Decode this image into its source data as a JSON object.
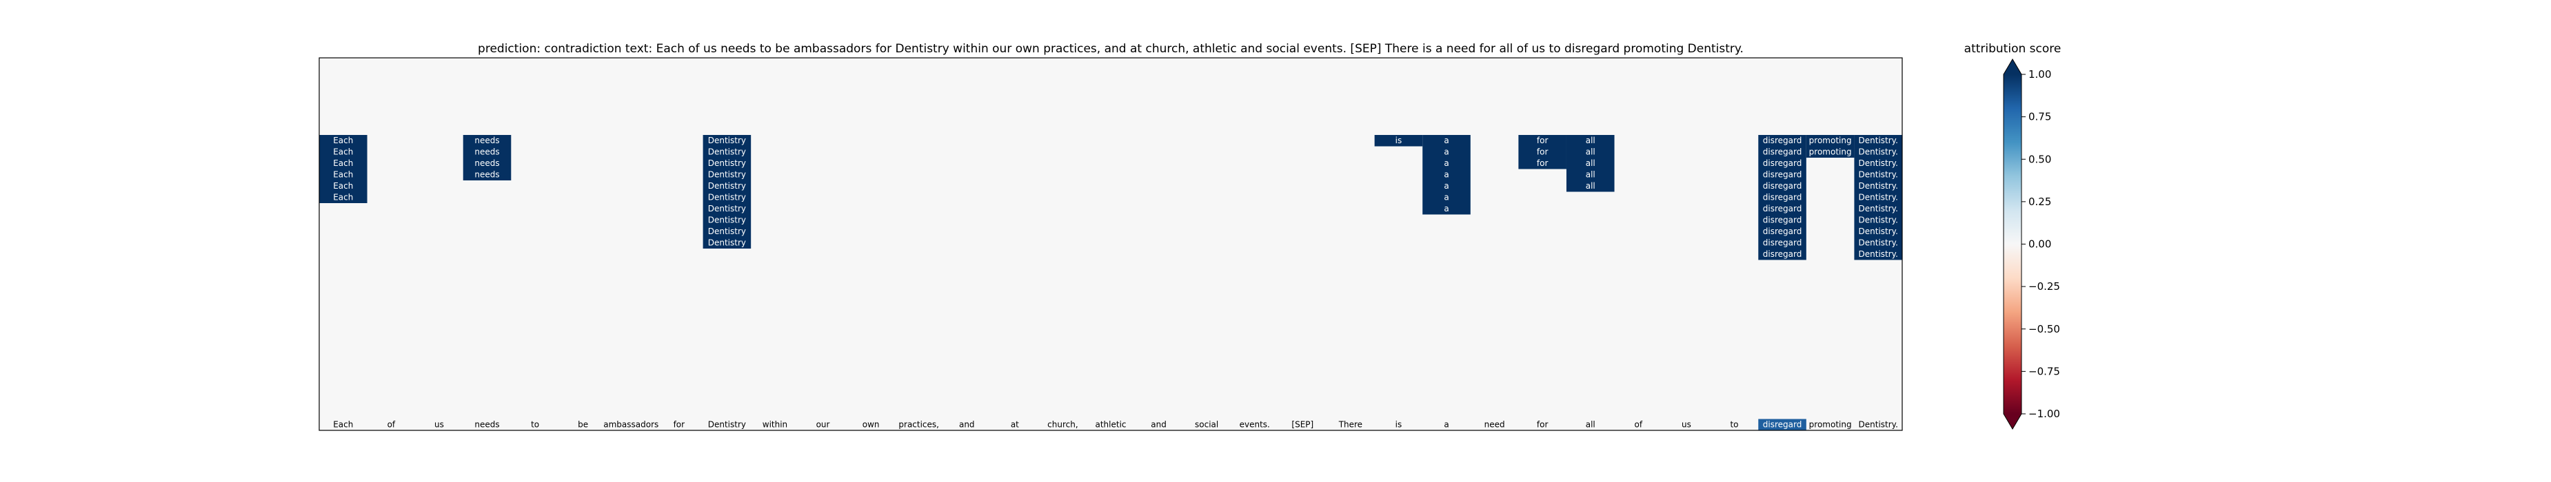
{
  "chart_data": {
    "type": "heatmap",
    "title": "prediction:  contradiction     text:  Each of us needs to be ambassadors for Dentistry within our own practices, and at church, athletic and social events. [SEP] There is a need for all of us to disregard promoting Dentistry.",
    "tokens": [
      "Each",
      "of",
      "us",
      "needs",
      "to",
      "be",
      "ambassadors",
      "for",
      "Dentistry",
      "within",
      "our",
      "own",
      "practices,",
      "and",
      "at",
      "church,",
      "athletic",
      "and",
      "social",
      "events.",
      "[SEP]",
      "There",
      "is",
      "a",
      "need",
      "for",
      "all",
      "of",
      "us",
      "to",
      "disregard",
      "promoting",
      "Dentistry."
    ],
    "n_rows": 33,
    "cells": [
      {
        "col": 0,
        "rows": [
          7,
          8,
          9,
          10,
          11,
          12
        ],
        "value": 0.92
      },
      {
        "col": 3,
        "rows": [
          7,
          8,
          9,
          10
        ],
        "value": 0.92
      },
      {
        "col": 8,
        "rows": [
          7,
          8,
          9,
          10,
          11,
          12,
          13,
          14,
          15,
          16
        ],
        "value": 0.92
      },
      {
        "col": 22,
        "rows": [
          7
        ],
        "value": 0.92
      },
      {
        "col": 23,
        "rows": [
          7,
          8,
          9,
          10,
          11,
          12,
          13
        ],
        "value": 0.92
      },
      {
        "col": 25,
        "rows": [
          7,
          8,
          9
        ],
        "value": 0.92
      },
      {
        "col": 26,
        "rows": [
          7,
          8,
          9,
          10,
          11
        ],
        "value": 0.92
      },
      {
        "col": 30,
        "rows": [
          7,
          8,
          9,
          10,
          11,
          12,
          13,
          14,
          15,
          16,
          17
        ],
        "value": 0.92
      },
      {
        "col": 31,
        "rows": [
          7,
          8
        ],
        "value": 0.92
      },
      {
        "col": 32,
        "rows": [
          7,
          8,
          9,
          10,
          11,
          12,
          13,
          14,
          15,
          16,
          17
        ],
        "value": 0.92
      }
    ],
    "colorbar": {
      "label": "attribution score",
      "range": [
        -1.0,
        1.0
      ],
      "ticks": [
        "1.00",
        "0.75",
        "0.50",
        "0.25",
        "0.00",
        "−0.25",
        "−0.50",
        "−0.75",
        "−1.00"
      ],
      "colors": [
        "#053061",
        "#2166ac",
        "#4393c3",
        "#92c5de",
        "#d1e5f0",
        "#f7f7f7",
        "#fddbc7",
        "#f4a582",
        "#d6604d",
        "#b2182b",
        "#67001f"
      ]
    },
    "background": "#f7f7f7"
  }
}
